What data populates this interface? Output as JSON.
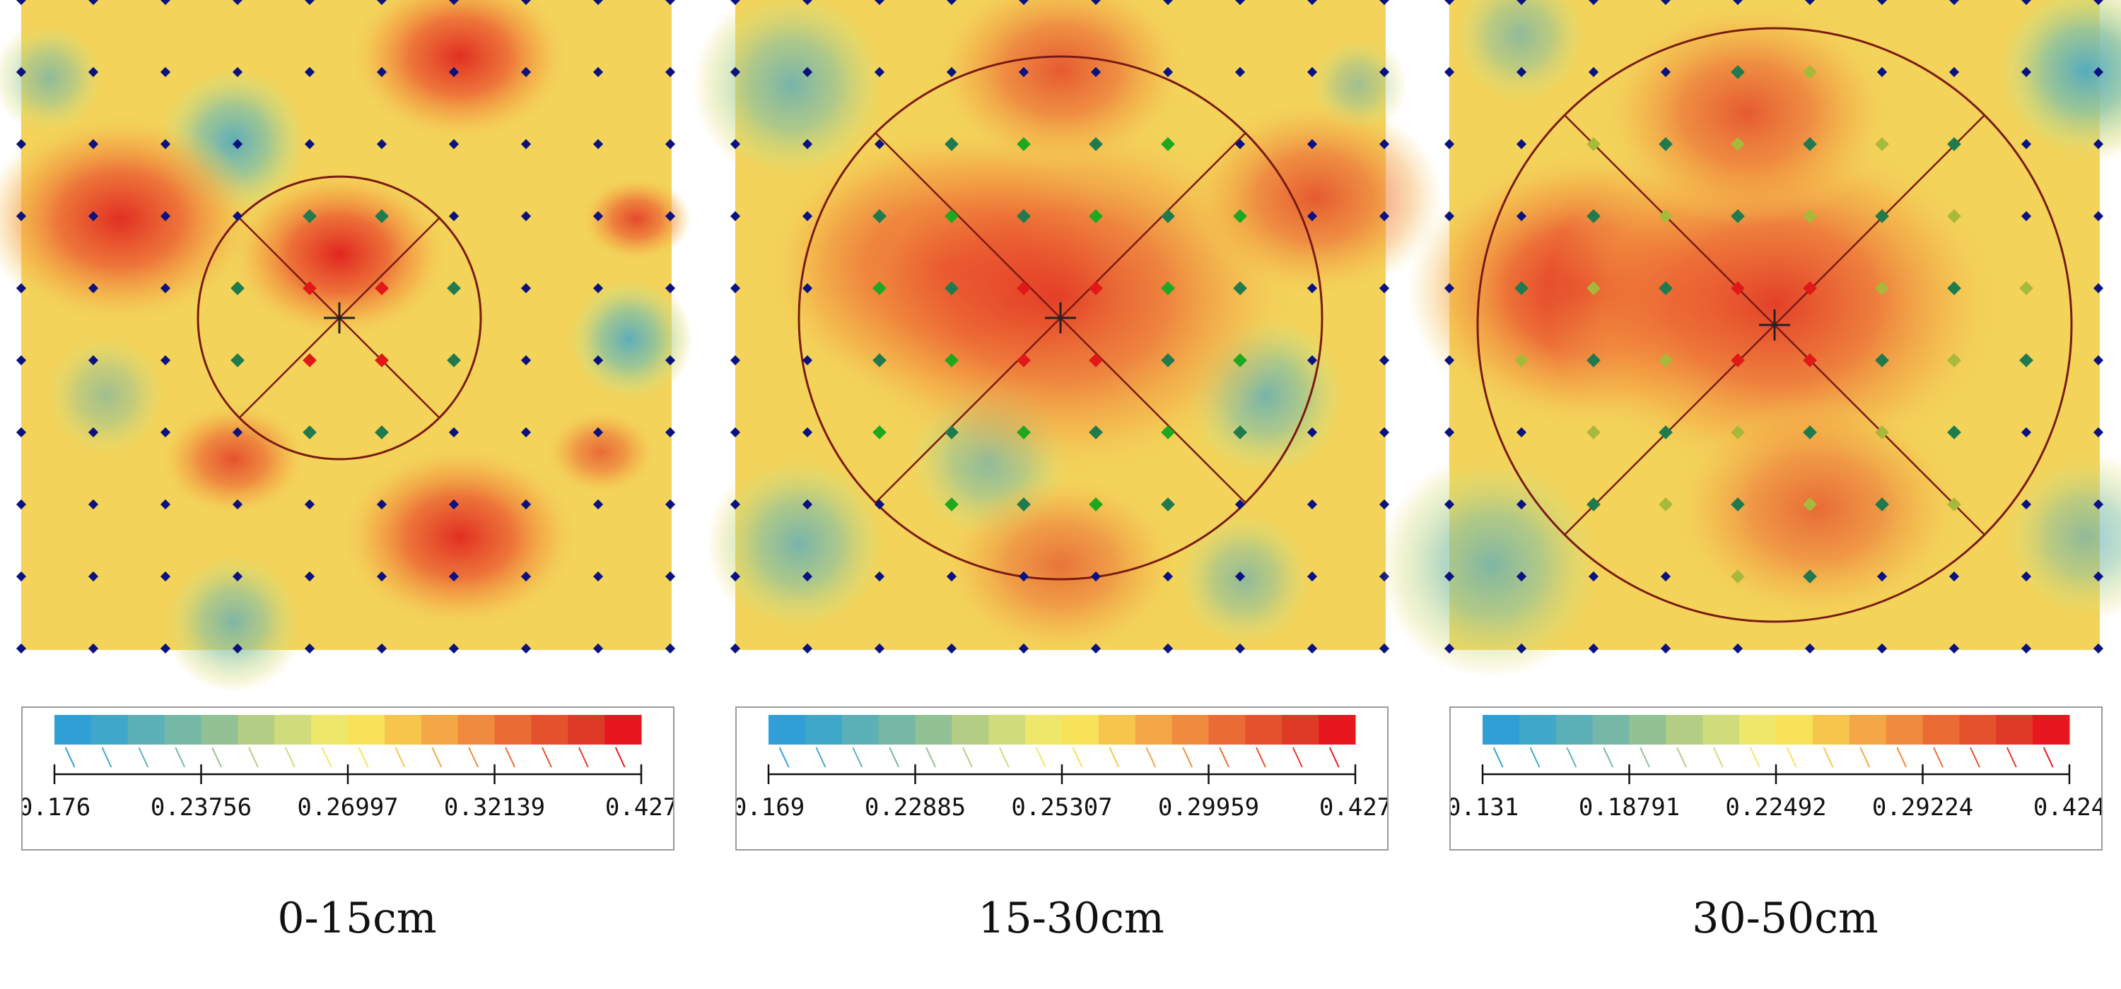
{
  "panels": [
    {
      "caption": "0-15cm",
      "legend": {
        "min": 0.176,
        "max": 0.427,
        "ticks": [
          "0.176",
          "0.23756",
          "0.26997",
          "0.32139",
          "0.427"
        ]
      }
    },
    {
      "caption": "15-30cm",
      "legend": {
        "min": 0.169,
        "max": 0.427,
        "ticks": [
          "0.169",
          "0.22885",
          "0.25307",
          "0.29959",
          "0.427"
        ]
      }
    },
    {
      "caption": "30-50cm",
      "legend": {
        "min": 0.131,
        "max": 0.424,
        "ticks": [
          "0.131",
          "0.18791",
          "0.22492",
          "0.29224",
          "0.424"
        ]
      }
    }
  ],
  "chart_data": [
    {
      "type": "heatmap",
      "title": "0-15cm",
      "grid": "10x10 sample points",
      "legend_range": [
        0.176,
        0.427
      ],
      "center_marker": "cross",
      "circle_sectors": 4,
      "highlight_colors": [
        "#1f7a4d",
        "#e01818"
      ]
    },
    {
      "type": "heatmap",
      "title": "15-30cm",
      "grid": "10x10 sample points",
      "legend_range": [
        0.169,
        0.427
      ],
      "center_marker": "cross",
      "circle_sectors": 4,
      "highlight_colors": [
        "#1f7a4d",
        "#1fa81f",
        "#e01818"
      ]
    },
    {
      "type": "heatmap",
      "title": "30-50cm",
      "grid": "10x10 sample points",
      "legend_range": [
        0.131,
        0.424
      ],
      "center_marker": "cross",
      "circle_sectors": 4,
      "highlight_colors": [
        "#1f7a4d",
        "#1fa81f",
        "#a8b83a",
        "#e01818"
      ]
    }
  ],
  "colors": {
    "sample_point": "#0a1180",
    "circle": "#7a1a12",
    "scale": [
      "#2f9fd6",
      "#3fa8c8",
      "#5cb0b8",
      "#76b8a6",
      "#92c194",
      "#b3cd85",
      "#cfdc7a",
      "#eee86a",
      "#f8e25a",
      "#f7c54c",
      "#f4a744",
      "#f08a3c",
      "#ea6c34",
      "#e4522c",
      "#df3a26",
      "#e8161e"
    ]
  }
}
